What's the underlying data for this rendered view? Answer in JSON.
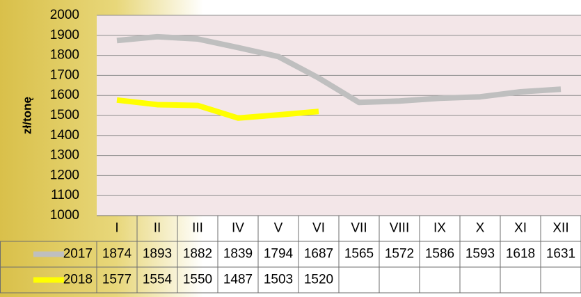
{
  "chart_data": {
    "type": "line",
    "y_label": "zł/tonę",
    "categories": [
      "I",
      "II",
      "III",
      "IV",
      "V",
      "VI",
      "VII",
      "VIII",
      "IX",
      "X",
      "XI",
      "XII"
    ],
    "series": [
      {
        "name": "2017",
        "color": "#bfbfbf",
        "values": [
          1874,
          1893,
          1882,
          1839,
          1794,
          1687,
          1565,
          1572,
          1586,
          1593,
          1618,
          1631
        ]
      },
      {
        "name": "2018",
        "color": "#ffff00",
        "values": [
          1577,
          1554,
          1550,
          1487,
          1503,
          1520,
          null,
          null,
          null,
          null,
          null,
          null
        ]
      }
    ],
    "ylim": [
      1000,
      2000
    ],
    "yticks": [
      1000,
      1100,
      1200,
      1300,
      1400,
      1500,
      1600,
      1700,
      1800,
      1900,
      2000
    ],
    "grid": true
  }
}
